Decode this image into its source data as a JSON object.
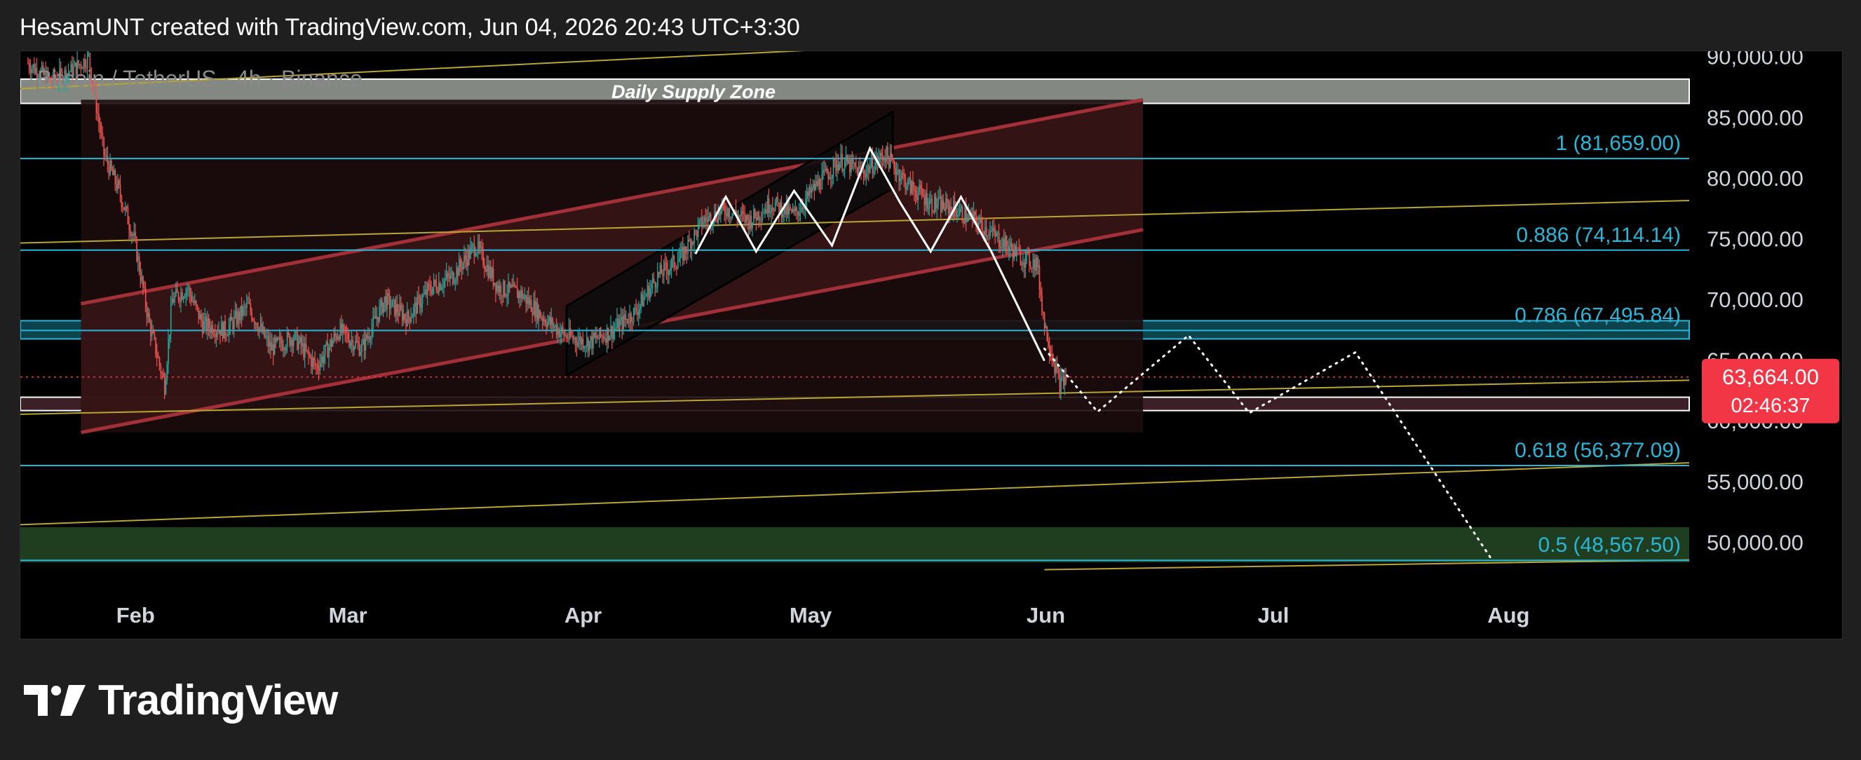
{
  "header": {
    "attribution": "HesamUNT created with TradingView.com, Jun 04, 2026 20:43 UTC+3:30"
  },
  "brand": {
    "name": "TradingView",
    "icon": "tradingview-logo-icon"
  },
  "colors": {
    "background": "#000000",
    "page": "#1f1f1f",
    "fib": "#29b6d8",
    "channel": "#a33038",
    "channel_fill": "#3a1517",
    "supply_zone": "#9aa09a",
    "demand_zone": "#1f3d1f",
    "price_badge": "#f23645",
    "candle_up": "#26a69a",
    "candle_down": "#ef5350",
    "trendline": "#b9a532"
  },
  "chart_data": {
    "type": "candlestick",
    "symbol_title": "Bitcoin / TetherUS · 4h · Binance",
    "zone_label": "Daily Supply Zone",
    "x_axis": {
      "ticks": [
        "Feb",
        "Mar",
        "Apr",
        "May",
        "Jun",
        "Jul",
        "Aug"
      ],
      "tick_dates": [
        "2026-02-01",
        "2026-03-01",
        "2026-04-01",
        "2026-05-01",
        "2026-06-01",
        "2026-07-01",
        "2026-08-01"
      ],
      "range": [
        "2026-01-17",
        "2026-08-25"
      ]
    },
    "y_axis": {
      "ticks": [
        "90,000.00",
        "85,000.00",
        "80,000.00",
        "75,000.00",
        "70,000.00",
        "65,000.00",
        "60,000.00",
        "55,000.00",
        "50,000.00"
      ],
      "tick_values": [
        90000,
        85000,
        80000,
        75000,
        70000,
        65000,
        60000,
        55000,
        50000
      ],
      "range": [
        46500,
        90500
      ]
    },
    "price_series": {
      "dates": [
        "2026-01-18",
        "2026-01-21",
        "2026-01-24",
        "2026-01-26",
        "2026-01-28",
        "2026-01-30",
        "2026-02-01",
        "2026-02-03",
        "2026-02-05",
        "2026-02-06",
        "2026-02-08",
        "2026-02-10",
        "2026-02-13",
        "2026-02-16",
        "2026-02-19",
        "2026-02-22",
        "2026-02-25",
        "2026-02-28",
        "2026-03-03",
        "2026-03-06",
        "2026-03-09",
        "2026-03-12",
        "2026-03-15",
        "2026-03-18",
        "2026-03-21",
        "2026-03-24",
        "2026-03-27",
        "2026-03-30",
        "2026-04-02",
        "2026-04-05",
        "2026-04-08",
        "2026-04-11",
        "2026-04-14",
        "2026-04-17",
        "2026-04-20",
        "2026-04-23",
        "2026-04-26",
        "2026-04-29",
        "2026-05-02",
        "2026-05-05",
        "2026-05-08",
        "2026-05-11",
        "2026-05-14",
        "2026-05-17",
        "2026-05-20",
        "2026-05-23",
        "2026-05-26",
        "2026-05-29",
        "2026-05-31",
        "2026-06-01",
        "2026-06-02",
        "2026-06-03",
        "2026-06-04"
      ],
      "values": [
        89500,
        88000,
        89000,
        90000,
        82000,
        79000,
        75000,
        68000,
        63000,
        70000,
        71000,
        68000,
        67500,
        69500,
        66000,
        67000,
        64500,
        67500,
        66000,
        70000,
        68500,
        71000,
        72000,
        74500,
        71000,
        70500,
        68500,
        67000,
        66500,
        67500,
        69000,
        72000,
        73500,
        76500,
        77500,
        76500,
        78000,
        77000,
        79500,
        81500,
        80500,
        82000,
        79500,
        78000,
        77500,
        76500,
        75000,
        73500,
        73000,
        68000,
        65500,
        63000,
        63664
      ]
    },
    "current_price": {
      "label": "63,664.00",
      "value": 63664,
      "countdown": "02:46:37"
    },
    "fib_levels": [
      {
        "ratio": "1",
        "value": 81659,
        "label": "1 (81,659.00)"
      },
      {
        "ratio": "0.886",
        "value": 74114.14,
        "label": "0.886 (74,114.14)"
      },
      {
        "ratio": "0.786",
        "value": 67495.84,
        "label": "0.786 (67,495.84)"
      },
      {
        "ratio": "0.618",
        "value": 56377.09,
        "label": "0.618 (56,377.09)"
      },
      {
        "ratio": "0.5",
        "value": 48567.5,
        "label": "0.5 (48,567.50)"
      }
    ],
    "zones": [
      {
        "name": "Daily Supply Zone",
        "low": 86200,
        "high": 88200,
        "start": "2026-01-17",
        "end": "2026-08-25"
      },
      {
        "name": "demand",
        "low": 48400,
        "high": 51300,
        "start": "2026-01-17",
        "end": "2026-08-25"
      },
      {
        "name": "support",
        "low": 60900,
        "high": 62000,
        "start": "2026-01-17",
        "end": "2026-08-25"
      },
      {
        "name": "resistance",
        "low": 66800,
        "high": 68300,
        "start": "2026-01-17",
        "end": "2026-08-25"
      }
    ],
    "channel": {
      "start": "2026-01-25",
      "end": "2026-06-14",
      "upper": [
        69700,
        86500
      ],
      "lower": [
        59100,
        75800
      ]
    },
    "rising_wedge": {
      "start": "2026-03-30",
      "end": "2026-05-12",
      "upper": [
        69500,
        85500
      ],
      "lower": [
        63800,
        79200
      ]
    },
    "head_and_shoulders": {
      "dates": [
        "2026-04-16",
        "2026-04-20",
        "2026-04-24",
        "2026-04-29",
        "2026-05-04",
        "2026-05-09",
        "2026-05-13",
        "2026-05-17",
        "2026-05-21",
        "2026-05-25",
        "2026-06-01"
      ],
      "values": [
        73800,
        78500,
        74000,
        79000,
        74500,
        82500,
        78000,
        74000,
        78500,
        74000,
        65000
      ]
    },
    "projection": {
      "dates": [
        "2026-06-01",
        "2026-06-08",
        "2026-06-20",
        "2026-06-28",
        "2026-07-12",
        "2026-07-30"
      ],
      "values": [
        66000,
        60800,
        67100,
        60700,
        65700,
        48600
      ]
    },
    "trendlines": [
      {
        "start": "2026-01-17",
        "end": "2026-08-25",
        "from": 74700,
        "to": 78200
      },
      {
        "start": "2026-01-17",
        "end": "2026-08-25",
        "from": 60600,
        "to": 63400
      },
      {
        "start": "2026-01-17",
        "end": "2026-08-25",
        "from": 51500,
        "to": 56600
      },
      {
        "start": "2026-01-17",
        "end": "2026-05-15",
        "from": 87400,
        "to": 91000
      },
      {
        "start": "2026-06-01",
        "end": "2026-08-25",
        "from": 47800,
        "to": 48600
      }
    ]
  }
}
